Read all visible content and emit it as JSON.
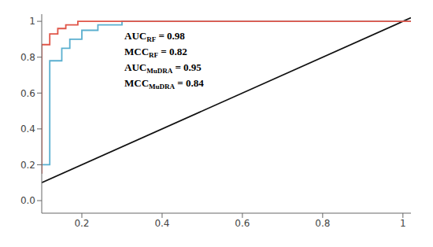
{
  "chart_data": {
    "type": "line",
    "xlim": [
      0.1,
      1.02
    ],
    "ylim": [
      -0.07,
      1.04
    ],
    "xticks": [
      0.2,
      0.4,
      0.6,
      0.8,
      1
    ],
    "yticks": [
      {
        "value": 0,
        "label": "0.0"
      },
      0.2,
      0.4,
      0.6,
      0.8,
      1
    ],
    "grid": false,
    "series": [
      {
        "type": "line",
        "color": "#111111",
        "x": [
          0.1,
          1.02
        ],
        "values": [
          0.1,
          1.02
        ]
      },
      {
        "type": "step",
        "color": "#5aafcf",
        "x": [
          0.1,
          0.1,
          0.12,
          0.12,
          0.15,
          0.15,
          0.17,
          0.17,
          0.2,
          0.2,
          0.24,
          0.24,
          0.3,
          0.3,
          1.02
        ],
        "values": [
          0.15,
          0.2,
          0.2,
          0.78,
          0.78,
          0.85,
          0.85,
          0.9,
          0.9,
          0.95,
          0.95,
          0.98,
          0.98,
          1.0,
          1.0
        ]
      },
      {
        "type": "step",
        "color": "#e05548",
        "x": [
          0.1,
          0.1,
          0.12,
          0.12,
          0.14,
          0.14,
          0.16,
          0.16,
          0.19,
          0.19,
          0.22,
          0.22,
          0.28,
          0.28,
          1.02
        ],
        "values": [
          0.15,
          0.87,
          0.87,
          0.93,
          0.93,
          0.96,
          0.96,
          0.98,
          0.98,
          1.0,
          1.0,
          1.0,
          1.0,
          1.0,
          1.0
        ]
      }
    ],
    "annotations": [
      {
        "text": "AUC",
        "subscript": "RF",
        "suffix": " = 0.98"
      },
      {
        "text": "MCC",
        "subscript": "RF",
        "suffix": " = 0.82"
      },
      {
        "text": "AUC",
        "subscript": "MuDRA",
        "suffix": " = 0.95"
      },
      {
        "text": "MCC",
        "subscript": "MuDRA",
        "suffix": " = 0.84"
      }
    ]
  }
}
